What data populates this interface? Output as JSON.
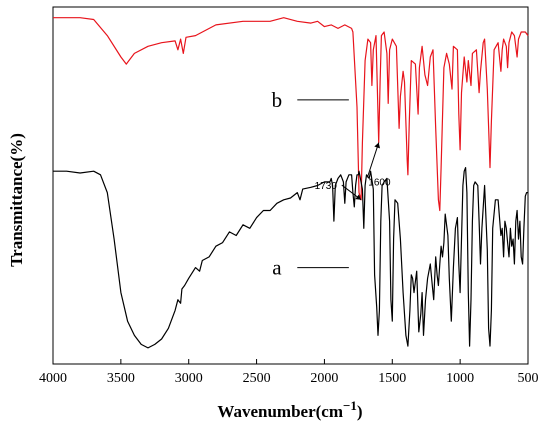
{
  "chart_data": {
    "type": "line",
    "title": "",
    "xlabel": "Wavenumber(cm",
    "xlabel_superscript": "−1",
    "xlabel_close": ")",
    "ylabel": "Transmittance(%)",
    "xlim": [
      4000,
      500
    ],
    "x_reversed": true,
    "yticks_shown": false,
    "grid": false,
    "x_ticks": [
      4000,
      3500,
      3000,
      2500,
      2000,
      1500,
      1000,
      500
    ],
    "x_tick_labels": [
      "4000",
      "3500",
      "3000",
      "2500",
      "2000",
      "1500",
      "1000",
      "500"
    ],
    "ylim": [
      0,
      100
    ],
    "series": [
      {
        "name": "b",
        "color": "#e8141c",
        "label": "b",
        "label_pos_x": 2350,
        "label_pos_y": 74,
        "leader": [
          2200,
          1820
        ],
        "points": [
          [
            4000,
            97
          ],
          [
            3800,
            97
          ],
          [
            3700,
            96.5
          ],
          [
            3600,
            92
          ],
          [
            3500,
            86
          ],
          [
            3460,
            84
          ],
          [
            3400,
            87
          ],
          [
            3300,
            89
          ],
          [
            3200,
            90
          ],
          [
            3100,
            90.5
          ],
          [
            3080,
            88
          ],
          [
            3060,
            91
          ],
          [
            3040,
            87
          ],
          [
            3020,
            91.5
          ],
          [
            2950,
            92
          ],
          [
            2800,
            95
          ],
          [
            2600,
            96
          ],
          [
            2400,
            96
          ],
          [
            2300,
            97
          ],
          [
            2200,
            96
          ],
          [
            2100,
            95.5
          ],
          [
            2050,
            96
          ],
          [
            2000,
            94.5
          ],
          [
            1950,
            95
          ],
          [
            1900,
            94
          ],
          [
            1850,
            95
          ],
          [
            1800,
            94
          ],
          [
            1790,
            93
          ],
          [
            1760,
            72
          ],
          [
            1745,
            48
          ],
          [
            1730,
            46
          ],
          [
            1720,
            62
          ],
          [
            1700,
            85
          ],
          [
            1680,
            91
          ],
          [
            1660,
            90
          ],
          [
            1650,
            78
          ],
          [
            1640,
            88
          ],
          [
            1620,
            92
          ],
          [
            1605,
            70
          ],
          [
            1600,
            62
          ],
          [
            1590,
            79
          ],
          [
            1580,
            92
          ],
          [
            1560,
            93
          ],
          [
            1540,
            87
          ],
          [
            1530,
            73
          ],
          [
            1520,
            88
          ],
          [
            1500,
            91
          ],
          [
            1470,
            89
          ],
          [
            1450,
            66
          ],
          [
            1440,
            75
          ],
          [
            1420,
            82
          ],
          [
            1410,
            79
          ],
          [
            1390,
            57
          ],
          [
            1385,
            53
          ],
          [
            1375,
            68
          ],
          [
            1360,
            85
          ],
          [
            1330,
            84
          ],
          [
            1310,
            70
          ],
          [
            1300,
            83
          ],
          [
            1280,
            89
          ],
          [
            1260,
            81
          ],
          [
            1240,
            78
          ],
          [
            1220,
            86
          ],
          [
            1200,
            88
          ],
          [
            1180,
            66
          ],
          [
            1160,
            46
          ],
          [
            1150,
            43
          ],
          [
            1140,
            55
          ],
          [
            1120,
            83
          ],
          [
            1100,
            87
          ],
          [
            1080,
            84
          ],
          [
            1060,
            77
          ],
          [
            1050,
            89
          ],
          [
            1020,
            88
          ],
          [
            1010,
            70
          ],
          [
            1000,
            60
          ],
          [
            990,
            76
          ],
          [
            970,
            86
          ],
          [
            950,
            79
          ],
          [
            940,
            85
          ],
          [
            920,
            78
          ],
          [
            910,
            87
          ],
          [
            880,
            88
          ],
          [
            860,
            76
          ],
          [
            850,
            82
          ],
          [
            830,
            90
          ],
          [
            820,
            91
          ],
          [
            800,
            77
          ],
          [
            780,
            55
          ],
          [
            770,
            68
          ],
          [
            750,
            88
          ],
          [
            720,
            90
          ],
          [
            700,
            82
          ],
          [
            690,
            88
          ],
          [
            680,
            91
          ],
          [
            660,
            89
          ],
          [
            650,
            83
          ],
          [
            640,
            90
          ],
          [
            620,
            93
          ],
          [
            600,
            92
          ],
          [
            580,
            86
          ],
          [
            570,
            91
          ],
          [
            550,
            93
          ],
          [
            520,
            93
          ],
          [
            500,
            92
          ]
        ]
      },
      {
        "name": "a",
        "color": "#000000",
        "label": "a",
        "label_pos_x": 2350,
        "label_pos_y": 27,
        "leader": [
          2200,
          1820
        ],
        "points": [
          [
            4000,
            54
          ],
          [
            3900,
            54
          ],
          [
            3800,
            53.5
          ],
          [
            3700,
            54
          ],
          [
            3650,
            53
          ],
          [
            3600,
            48
          ],
          [
            3550,
            35
          ],
          [
            3500,
            20
          ],
          [
            3450,
            12
          ],
          [
            3400,
            8
          ],
          [
            3350,
            5.5
          ],
          [
            3300,
            4.5
          ],
          [
            3250,
            5.5
          ],
          [
            3200,
            7
          ],
          [
            3150,
            10
          ],
          [
            3100,
            15
          ],
          [
            3080,
            18
          ],
          [
            3060,
            17
          ],
          [
            3050,
            21
          ],
          [
            3030,
            22
          ],
          [
            3000,
            24
          ],
          [
            2950,
            27
          ],
          [
            2920,
            26
          ],
          [
            2900,
            29
          ],
          [
            2850,
            30
          ],
          [
            2800,
            33
          ],
          [
            2750,
            34
          ],
          [
            2700,
            37
          ],
          [
            2650,
            36
          ],
          [
            2600,
            39
          ],
          [
            2550,
            38
          ],
          [
            2500,
            41
          ],
          [
            2450,
            43
          ],
          [
            2400,
            43
          ],
          [
            2350,
            45
          ],
          [
            2300,
            46
          ],
          [
            2250,
            46.5
          ],
          [
            2200,
            48
          ],
          [
            2180,
            46
          ],
          [
            2160,
            49
          ],
          [
            2100,
            49.5
          ],
          [
            2050,
            50
          ],
          [
            2000,
            51
          ],
          [
            1960,
            51
          ],
          [
            1950,
            52
          ],
          [
            1940,
            50
          ],
          [
            1930,
            40
          ],
          [
            1920,
            50
          ],
          [
            1900,
            52
          ],
          [
            1880,
            53
          ],
          [
            1860,
            51
          ],
          [
            1850,
            45
          ],
          [
            1840,
            51
          ],
          [
            1820,
            53
          ],
          [
            1800,
            53
          ],
          [
            1790,
            48
          ],
          [
            1780,
            44
          ],
          [
            1770,
            50
          ],
          [
            1760,
            53
          ],
          [
            1750,
            53
          ],
          [
            1745,
            54
          ],
          [
            1740,
            53
          ],
          [
            1720,
            49
          ],
          [
            1710,
            38
          ],
          [
            1700,
            50
          ],
          [
            1690,
            53
          ],
          [
            1670,
            52
          ],
          [
            1660,
            54
          ],
          [
            1640,
            49
          ],
          [
            1630,
            25
          ],
          [
            1615,
            16
          ],
          [
            1605,
            8
          ],
          [
            1595,
            15
          ],
          [
            1585,
            40
          ],
          [
            1575,
            50
          ],
          [
            1560,
            51
          ],
          [
            1540,
            52
          ],
          [
            1520,
            40
          ],
          [
            1510,
            18
          ],
          [
            1500,
            12
          ],
          [
            1490,
            35
          ],
          [
            1480,
            46
          ],
          [
            1460,
            45
          ],
          [
            1440,
            35
          ],
          [
            1420,
            20
          ],
          [
            1400,
            8
          ],
          [
            1385,
            5
          ],
          [
            1370,
            15
          ],
          [
            1360,
            25
          ],
          [
            1350,
            24
          ],
          [
            1340,
            20
          ],
          [
            1320,
            26
          ],
          [
            1305,
            9
          ],
          [
            1290,
            14
          ],
          [
            1280,
            20
          ],
          [
            1270,
            8
          ],
          [
            1255,
            18
          ],
          [
            1240,
            24
          ],
          [
            1220,
            28
          ],
          [
            1205,
            22
          ],
          [
            1195,
            18
          ],
          [
            1180,
            30
          ],
          [
            1170,
            25
          ],
          [
            1160,
            22
          ],
          [
            1150,
            28
          ],
          [
            1140,
            33
          ],
          [
            1130,
            30
          ],
          [
            1120,
            34
          ],
          [
            1110,
            42
          ],
          [
            1090,
            36
          ],
          [
            1080,
            24
          ],
          [
            1065,
            12
          ],
          [
            1050,
            27
          ],
          [
            1035,
            38
          ],
          [
            1020,
            41
          ],
          [
            1010,
            28
          ],
          [
            1000,
            20
          ],
          [
            990,
            35
          ],
          [
            980,
            50
          ],
          [
            970,
            54
          ],
          [
            960,
            55
          ],
          [
            950,
            48
          ],
          [
            940,
            20
          ],
          [
            930,
            5
          ],
          [
            920,
            18
          ],
          [
            910,
            40
          ],
          [
            900,
            50
          ],
          [
            890,
            51
          ],
          [
            870,
            50
          ],
          [
            860,
            40
          ],
          [
            850,
            28
          ],
          [
            840,
            38
          ],
          [
            820,
            50
          ],
          [
            800,
            32
          ],
          [
            790,
            10
          ],
          [
            780,
            5
          ],
          [
            770,
            15
          ],
          [
            760,
            38
          ],
          [
            740,
            46
          ],
          [
            720,
            46
          ],
          [
            700,
            36
          ],
          [
            690,
            38
          ],
          [
            680,
            30
          ],
          [
            670,
            40
          ],
          [
            660,
            38
          ],
          [
            650,
            34
          ],
          [
            640,
            30
          ],
          [
            630,
            38
          ],
          [
            620,
            33
          ],
          [
            610,
            35
          ],
          [
            600,
            28
          ],
          [
            590,
            40
          ],
          [
            580,
            43
          ],
          [
            570,
            35
          ],
          [
            560,
            40
          ],
          [
            550,
            30
          ],
          [
            540,
            28
          ],
          [
            530,
            38
          ],
          [
            520,
            47
          ],
          [
            510,
            48
          ],
          [
            500,
            48
          ]
        ]
      }
    ],
    "annotations": [
      {
        "text": "1730",
        "x": 1730,
        "y": 46,
        "text_x": 1990,
        "text_y": 49
      },
      {
        "text": "1600",
        "x": 1600,
        "y": 62,
        "text_x": 1595,
        "text_y": 50
      }
    ]
  }
}
